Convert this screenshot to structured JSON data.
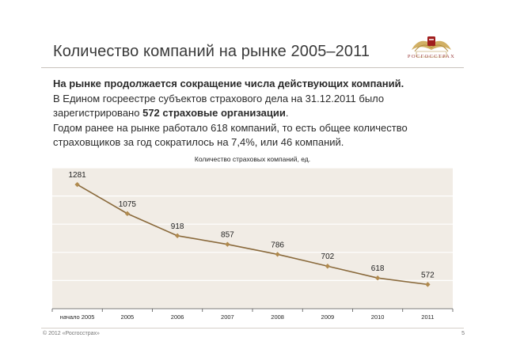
{
  "slide": {
    "title": "Количество компаний на рынке 2005–2011",
    "logo_text": "РОСГОССТРАХ",
    "intro_lead": "На рынке продолжается сокращение числа действующих компаний.",
    "intro_line2_pre": "В Едином госреестре субъектов страхового дела на 31.12.2011 было зарегистрировано",
    "intro_line2_bold": "572 страховые организации",
    "intro_line2_post": ".",
    "intro_line3": "Годом ранее на рынке работало 618 компаний, то есть общее количество страховщиков за год сократилось на 7,4%, или 46 компаний."
  },
  "footer": {
    "copyright": "© 2012 «Росгосстрах»",
    "page_number": "5"
  },
  "colors": {
    "line": "#8a6a3c",
    "marker": "#b08a4e",
    "plot_bg": "#f1ece5",
    "grid": "#ffffff",
    "brand": "#a01e1e"
  },
  "chart_data": {
    "type": "line",
    "title": "Количество страховых компаний, ед.",
    "categories": [
      "начало 2005",
      "2005",
      "2006",
      "2007",
      "2008",
      "2009",
      "2010",
      "2011"
    ],
    "values": [
      1281,
      1075,
      918,
      857,
      786,
      702,
      618,
      572
    ],
    "labels": [
      "1281",
      "1075",
      "918",
      "857",
      "786",
      "702",
      "618",
      "572"
    ],
    "ylim": [
      400,
      1400
    ],
    "grid": true,
    "legend": "none"
  }
}
